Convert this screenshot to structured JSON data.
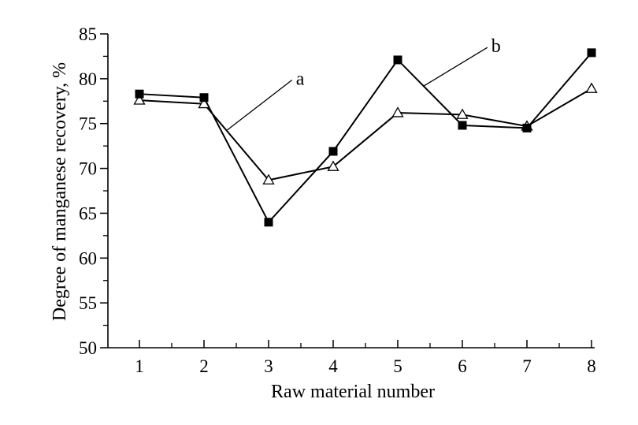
{
  "chart_data": {
    "type": "line",
    "title": "",
    "xlabel": "Raw material number",
    "ylabel": "Degree of manganese recovery, %",
    "categories": [
      "1",
      "2",
      "3",
      "4",
      "5",
      "6",
      "7",
      "8"
    ],
    "ylim": [
      50,
      85
    ],
    "yticks": [
      "50",
      "55",
      "60",
      "65",
      "70",
      "75",
      "80",
      "85"
    ],
    "grid": false,
    "series": [
      {
        "name": "a",
        "marker": "open-triangle",
        "values": [
          77.6,
          77.2,
          68.7,
          70.2,
          76.2,
          76.0,
          74.7,
          78.9
        ]
      },
      {
        "name": "b",
        "marker": "filled-square",
        "values": [
          78.3,
          77.9,
          64.0,
          71.9,
          82.1,
          74.8,
          74.5,
          82.9
        ]
      }
    ],
    "annotations": [
      {
        "text": "a",
        "series": "a",
        "segment": "2-3"
      },
      {
        "text": "b",
        "series": "b",
        "segment": "5-6"
      }
    ]
  }
}
